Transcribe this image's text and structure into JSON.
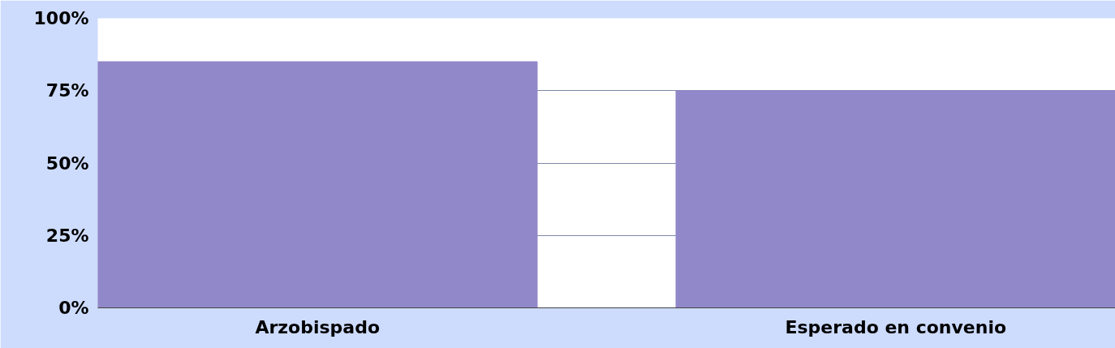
{
  "chart_data": {
    "type": "bar",
    "categories": [
      "Arzobispado",
      "Esperado en convenio"
    ],
    "values": [
      85,
      75
    ],
    "color": "#9088c9",
    "ylim": [
      0,
      100
    ],
    "yticks": [
      {
        "value": 0,
        "label": "0%"
      },
      {
        "value": 25,
        "label": "25%"
      },
      {
        "value": 50,
        "label": "50%"
      },
      {
        "value": 75,
        "label": "75%"
      },
      {
        "value": 100,
        "label": "100%"
      }
    ],
    "grid": "y"
  }
}
